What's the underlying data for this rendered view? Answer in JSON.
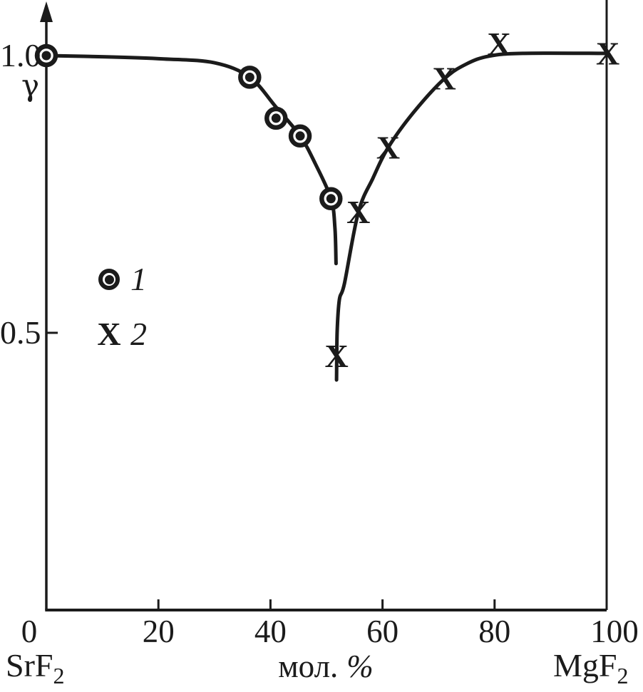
{
  "figure": {
    "background": "#ffffff",
    "ink_color": "#1b1b1b"
  },
  "y_axis": {
    "symbol": "γ",
    "tick_top": "1.0",
    "tick_mid": "0.5"
  },
  "x_axis": {
    "unit": "мол.",
    "percent": "%",
    "left_endmember": {
      "base": "SrF",
      "sub": "2"
    },
    "right_endmember": {
      "base": "MgF",
      "sub": "2"
    }
  },
  "legend": {
    "item1": {
      "label": "1",
      "marker": "circle-dot"
    },
    "item2": {
      "label": "2",
      "marker": "bold-x",
      "glyph": "X"
    }
  },
  "chart_data": {
    "type": "scatter",
    "title": "",
    "xlabel": "мол. %",
    "ylabel": "γ",
    "x_left_label": "SrF2",
    "x_right_label": "MgF2",
    "xlim": [
      0,
      100
    ],
    "ylim": [
      0,
      1.08
    ],
    "x_ticks": [
      0,
      20,
      40,
      60,
      80,
      100
    ],
    "y_ticks": [
      0.5,
      1.0
    ],
    "grid": false,
    "legend_entries": [
      "1",
      "2"
    ],
    "series": [
      {
        "name": "1",
        "marker": "circle-dot",
        "points": [
          [
            0,
            1.0
          ],
          [
            36.3,
            0.961
          ],
          [
            41,
            0.887
          ],
          [
            45.3,
            0.855
          ],
          [
            50.8,
            0.742
          ]
        ],
        "curve": [
          [
            0,
            1.0
          ],
          [
            10,
            0.998
          ],
          [
            21,
            0.994
          ],
          [
            30,
            0.987
          ],
          [
            36.3,
            0.961
          ],
          [
            41,
            0.907
          ],
          [
            45.3,
            0.855
          ],
          [
            48,
            0.805
          ],
          [
            50.8,
            0.742
          ],
          [
            51.5,
            0.69
          ],
          [
            51.7,
            0.625
          ]
        ]
      },
      {
        "name": "2",
        "marker": "bold-x",
        "glyph": "X",
        "points": [
          [
            51.8,
            0.458
          ],
          [
            55.7,
            0.718
          ],
          [
            61,
            0.834
          ],
          [
            71,
            0.959
          ],
          [
            80.8,
            1.021
          ],
          [
            100.2,
            1.004
          ]
        ],
        "curve": [
          [
            51.8,
            0.415
          ],
          [
            51.9,
            0.5
          ],
          [
            52.3,
            0.56
          ],
          [
            53.2,
            0.589
          ],
          [
            55.7,
            0.718
          ],
          [
            58.3,
            0.779
          ],
          [
            61,
            0.834
          ],
          [
            65.5,
            0.897
          ],
          [
            71,
            0.958
          ],
          [
            75,
            0.985
          ],
          [
            79,
            0.999
          ],
          [
            85,
            1.004
          ],
          [
            100,
            1.004
          ]
        ]
      }
    ]
  }
}
